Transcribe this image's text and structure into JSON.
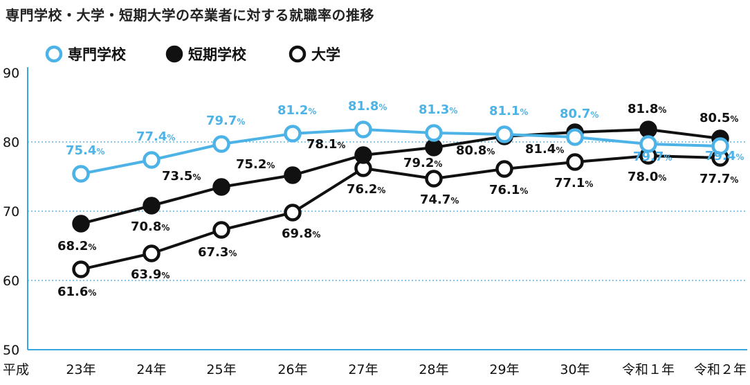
{
  "title": "専門学校・大学・短期大学の卒業者に対する就職率の推移",
  "colors": {
    "senmon": "#4db3e6",
    "tanki": "#111111",
    "daigaku": "#111111",
    "grid": "#3aa8e0",
    "axis": "#3aa8e0"
  },
  "chart_data": {
    "type": "line",
    "title": "専門学校・大学・短期大学の卒業者に対する就職率の推移",
    "x_prefix": "平成",
    "categories": [
      "23年",
      "24年",
      "25年",
      "26年",
      "27年",
      "28年",
      "29年",
      "30年",
      "令和１年",
      "令和２年"
    ],
    "ylim": [
      50,
      90
    ],
    "yticks": [
      "50",
      "60",
      "70",
      "80",
      "90"
    ],
    "grid": "dotted at 60, 70, 80",
    "legend_position": "top-left",
    "unit": "%",
    "series": [
      {
        "name": "専門学校",
        "style": "hollow-blue",
        "values": [
          75.4,
          77.4,
          79.7,
          81.2,
          81.8,
          81.3,
          81.1,
          80.7,
          79.7,
          79.4
        ],
        "labels": [
          "75.4",
          "77.4",
          "79.7",
          "81.2",
          "81.8",
          "81.3",
          "81.1",
          "80.7",
          "79.7",
          "79.4"
        ]
      },
      {
        "name": "短期学校",
        "style": "filled-black",
        "values": [
          68.2,
          70.8,
          73.5,
          75.2,
          78.1,
          79.2,
          80.8,
          81.4,
          81.8,
          80.5
        ],
        "labels": [
          "68.2",
          "70.8",
          "73.5",
          "75.2",
          "78.1",
          "79.2",
          "80.8",
          "81.4",
          "81.8",
          "80.5"
        ]
      },
      {
        "name": "大学",
        "style": "hollow-black",
        "values": [
          61.6,
          63.9,
          67.3,
          69.8,
          76.2,
          74.7,
          76.1,
          77.1,
          78.0,
          77.7
        ],
        "labels": [
          "61.6",
          "63.9",
          "67.3",
          "69.8",
          "76.2",
          "74.7",
          "76.1",
          "77.1",
          "78.0",
          "77.7"
        ]
      }
    ]
  }
}
